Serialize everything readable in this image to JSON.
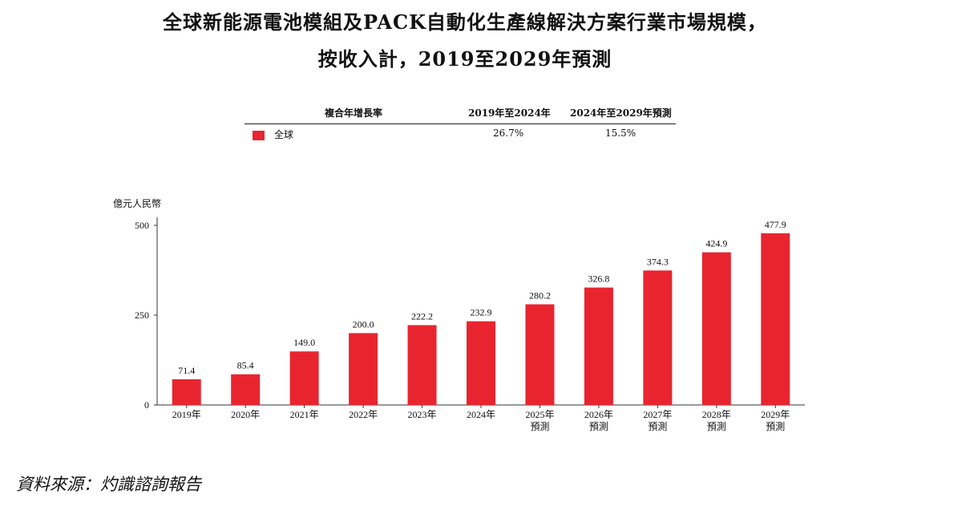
{
  "title_line1": "全球新能源電池模組及PACK自動化生產線解決方案行業市場規模，",
  "title_line2": "按收入計，2019至2029年預測",
  "cagr_table": {
    "header_label": "複合年增長率",
    "col1_header": "2019年至2024年",
    "col2_header": "2024年至2029年預測",
    "row_label": "全球",
    "col1_value": "26.7%",
    "col2_value": "15.5%"
  },
  "source_note": "資料來源：灼識諮詢報告",
  "colors": {
    "bar": "#e8252f",
    "axis": "#333333"
  },
  "chart_data": {
    "type": "bar",
    "title": "",
    "ylabel": "億元人民幣",
    "xlabel": "",
    "ylim": [
      0,
      500
    ],
    "yticks": [
      "0",
      "250",
      "500"
    ],
    "categories": [
      "2019年",
      "2020年",
      "2021年",
      "2022年",
      "2023年",
      "2024年",
      "2025年",
      "2026年",
      "2027年",
      "2028年",
      "2029年"
    ],
    "category_sublabels": [
      "",
      "",
      "",
      "",
      "",
      "",
      "預測",
      "預測",
      "預測",
      "預測",
      "預測"
    ],
    "values": [
      71.4,
      85.4,
      149.0,
      200.0,
      222.2,
      232.9,
      280.2,
      326.8,
      374.3,
      424.9,
      477.9
    ],
    "value_labels": [
      "71.4",
      "85.4",
      "149.0",
      "200.0",
      "222.2",
      "232.9",
      "280.2",
      "326.8",
      "374.3",
      "424.9",
      "477.9"
    ],
    "series_name": "全球"
  }
}
